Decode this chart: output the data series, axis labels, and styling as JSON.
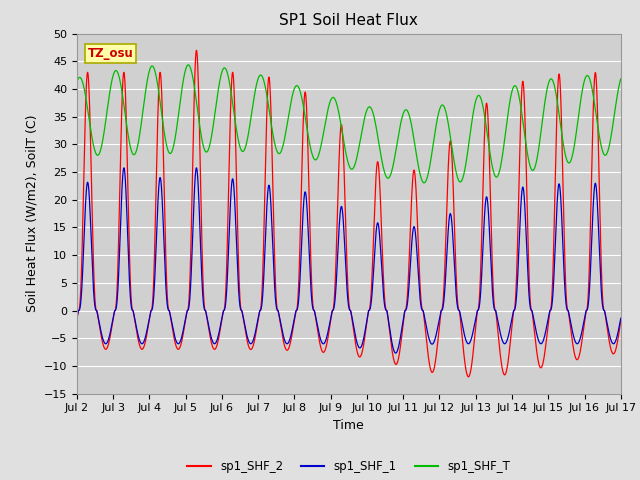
{
  "title": "SP1 Soil Heat Flux",
  "xlabel": "Time",
  "ylabel": "Soil Heat Flux (W/m2), SoilT (C)",
  "xlim": [
    0,
    15
  ],
  "ylim": [
    -15,
    50
  ],
  "yticks": [
    -15,
    -10,
    -5,
    0,
    5,
    10,
    15,
    20,
    25,
    30,
    35,
    40,
    45,
    50
  ],
  "xtick_labels": [
    "Jul 2",
    "Jul 3",
    "Jul 4",
    "Jul 5",
    "Jul 6",
    "Jul 7",
    "Jul 8",
    "Jul 9",
    "Jul 10",
    "Jul 11",
    "Jul 12",
    "Jul 13",
    "Jul 14",
    "Jul 15",
    "Jul 16",
    "Jul 17"
  ],
  "legend_labels": [
    "sp1_SHF_2",
    "sp1_SHF_1",
    "sp1_SHF_T"
  ],
  "legend_colors": [
    "#ff0000",
    "#0000cc",
    "#00bb00"
  ],
  "tz_label": "TZ_osu",
  "bg_color": "#e0e0e0",
  "plot_bg_color": "#d0d0d0",
  "title_fontsize": 11,
  "axis_label_fontsize": 9,
  "tick_fontsize": 8
}
